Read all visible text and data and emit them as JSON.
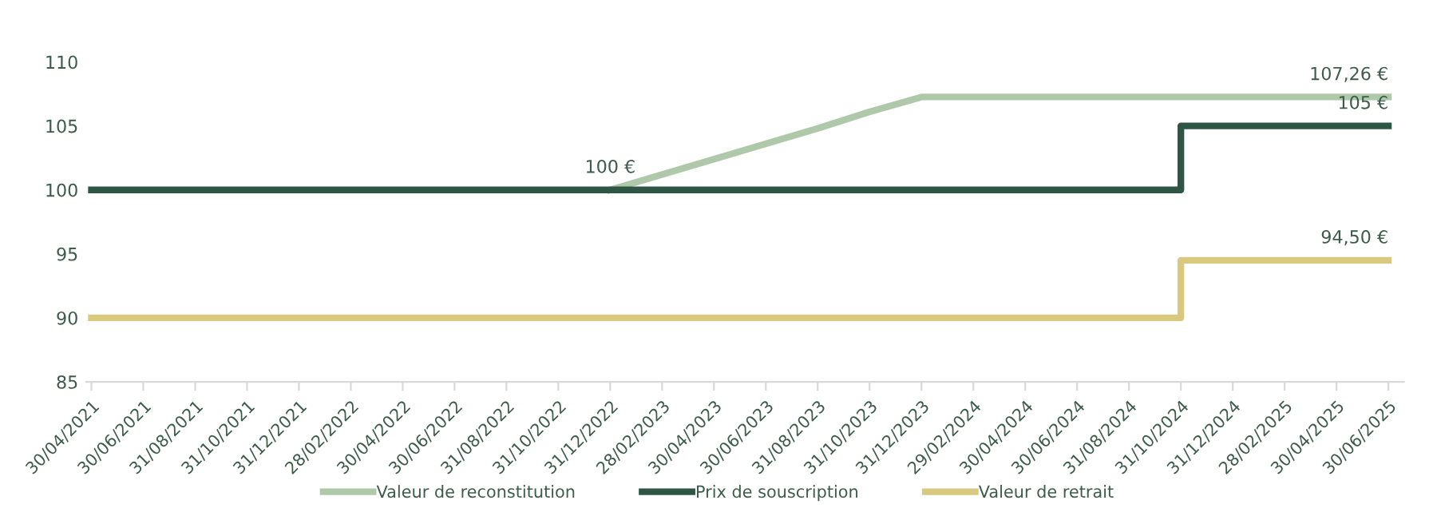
{
  "chart_data": {
    "type": "line",
    "categories": [
      "30/04/2021",
      "30/06/2021",
      "31/08/2021",
      "31/10/2021",
      "31/12/2021",
      "28/02/2022",
      "30/04/2022",
      "30/06/2022",
      "31/08/2022",
      "31/10/2022",
      "31/12/2022",
      "28/02/2023",
      "30/04/2023",
      "30/06/2023",
      "31/08/2023",
      "31/10/2023",
      "31/12/2023",
      "29/02/2024",
      "30/04/2024",
      "30/06/2024",
      "31/08/2024",
      "31/10/2024",
      "31/12/2024",
      "28/02/2025",
      "30/04/2025",
      "30/06/2025"
    ],
    "series": [
      {
        "name": "Valeur de reconstitution",
        "color": "#b0c8aa",
        "values": [
          null,
          null,
          null,
          null,
          null,
          null,
          null,
          null,
          null,
          null,
          100,
          101.2,
          102.4,
          103.6,
          104.8,
          106.1,
          107.26,
          107.26,
          107.26,
          107.26,
          107.26,
          107.26,
          107.26,
          107.26,
          107.26,
          107.26
        ],
        "value_labels": [
          null,
          null,
          null,
          null,
          null,
          null,
          null,
          null,
          null,
          null,
          "100 €",
          null,
          null,
          null,
          null,
          null,
          null,
          null,
          null,
          null,
          null,
          null,
          null,
          null,
          null,
          "107,26 €"
        ]
      },
      {
        "name": "Prix de souscription",
        "color": "#2f5545",
        "type": "step",
        "values": [
          100,
          100,
          100,
          100,
          100,
          100,
          100,
          100,
          100,
          100,
          100,
          100,
          100,
          100,
          100,
          100,
          100,
          100,
          100,
          100,
          100,
          105,
          105,
          105,
          105,
          105
        ],
        "value_labels": [
          null,
          null,
          null,
          null,
          null,
          null,
          null,
          null,
          null,
          null,
          null,
          null,
          null,
          null,
          null,
          null,
          null,
          null,
          null,
          null,
          null,
          null,
          null,
          null,
          null,
          "105 €"
        ]
      },
      {
        "name": "Valeur de retrait",
        "color": "#d8c97e",
        "type": "step",
        "values": [
          90,
          90,
          90,
          90,
          90,
          90,
          90,
          90,
          90,
          90,
          90,
          90,
          90,
          90,
          90,
          90,
          90,
          90,
          90,
          90,
          90,
          94.5,
          94.5,
          94.5,
          94.5,
          94.5
        ],
        "value_labels": [
          null,
          null,
          null,
          null,
          null,
          null,
          null,
          null,
          null,
          null,
          null,
          null,
          null,
          null,
          null,
          null,
          null,
          null,
          null,
          null,
          null,
          null,
          null,
          null,
          null,
          "94,50 €"
        ]
      }
    ],
    "ylim": [
      85,
      110
    ],
    "yticks": [
      85,
      90,
      95,
      100,
      105,
      110
    ],
    "grid": false,
    "legend": "bottom",
    "marker": "none",
    "line_style": "solid"
  }
}
